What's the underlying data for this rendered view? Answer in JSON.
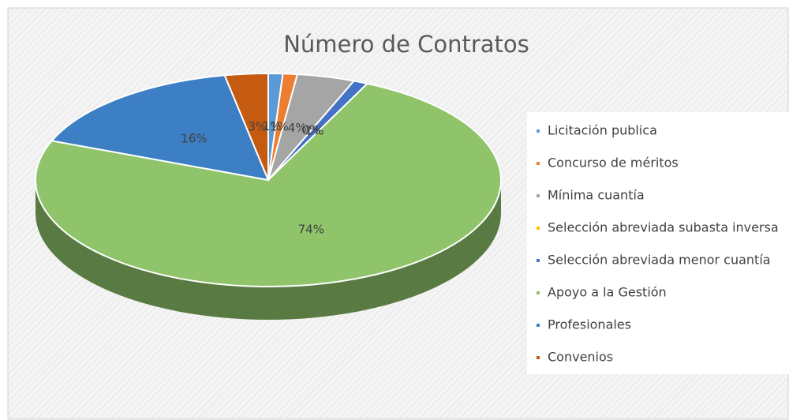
{
  "chart_data": {
    "type": "pie",
    "title": "Número de Contratos",
    "categories": [
      "Licitación publica",
      "Concurso de méritos",
      "Mínima cuantía",
      "Selección abreviada subasta inversa",
      "Selección abreviada menor cuantía",
      "Apoyo a la Gestión",
      "Profesionales",
      "Convenios"
    ],
    "values": [
      1,
      1,
      4,
      0,
      1,
      74,
      16,
      3
    ],
    "value_labels": [
      "1%",
      "1%",
      "4%",
      "0%",
      "1%",
      "74%",
      "16%",
      "3%"
    ],
    "colors": [
      "#5b9bd5",
      "#ed7d31",
      "#a5a5a5",
      "#ffc000",
      "#4472c4",
      "#8fc46a",
      "#3d7fc4",
      "#c55a11"
    ],
    "legend": "right"
  }
}
